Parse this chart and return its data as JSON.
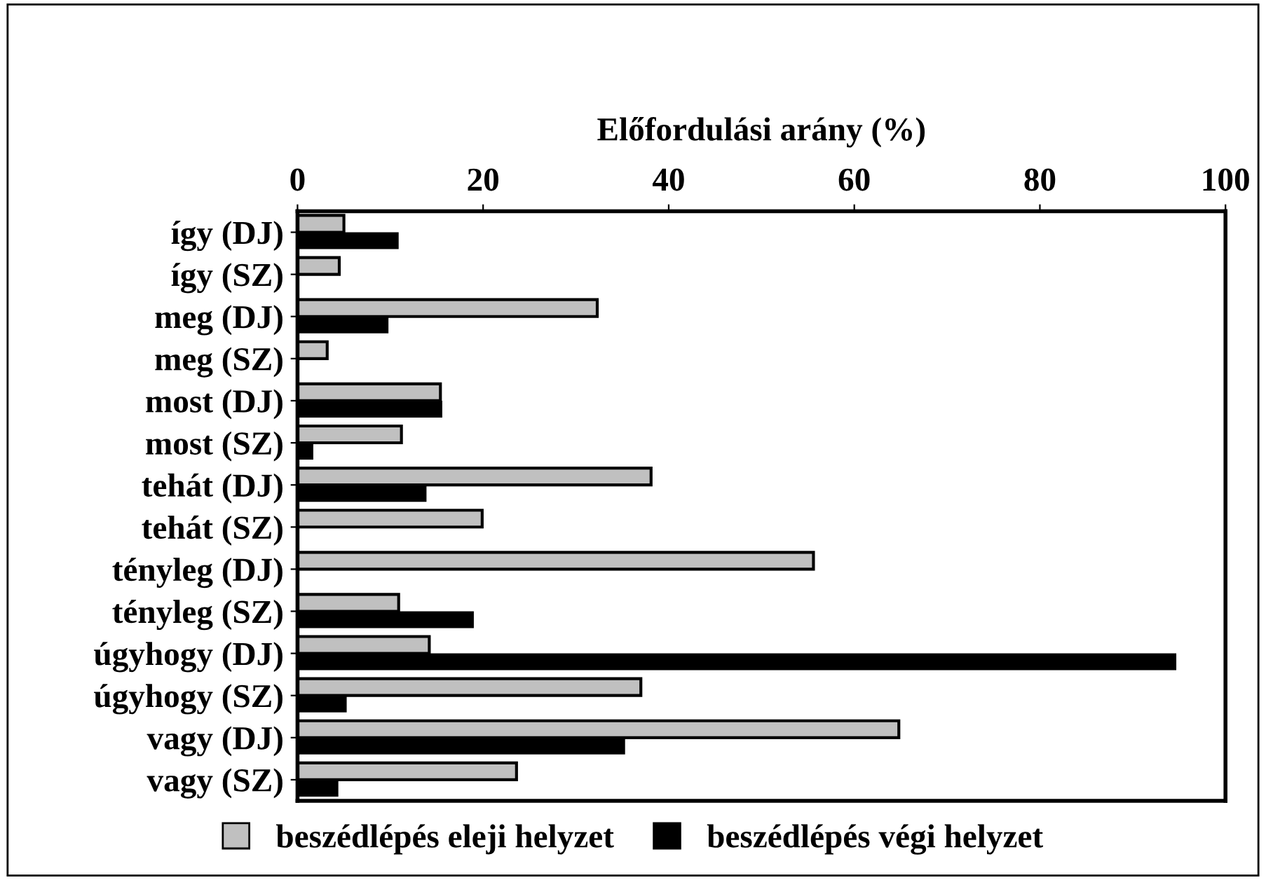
{
  "chart_data": {
    "type": "bar",
    "orientation": "horizontal",
    "xlabel": "Előfordulási arány (%)",
    "categories": [
      "így (DJ)",
      "így (SZ)",
      "meg (DJ)",
      "meg (SZ)",
      "most (DJ)",
      "most (SZ)",
      "tehát (DJ)",
      "tehát (SZ)",
      "tényleg (DJ)",
      "tényleg (SZ)",
      "úgyhogy (DJ)",
      "úgyhogy (SZ)",
      "vagy (DJ)",
      "vagy (SZ)"
    ],
    "series": [
      {
        "name": "beszédlépés eleji helyzet",
        "color": "#c0c0c0",
        "values": [
          5,
          4.5,
          32.3,
          3.2,
          15.4,
          11.2,
          38.1,
          19.9,
          55.6,
          10.9,
          14.2,
          37,
          64.8,
          23.6
        ]
      },
      {
        "name": "beszédlépés végi helyzet",
        "color": "#000000",
        "values": [
          10.9,
          0,
          9.8,
          0,
          15.6,
          1.7,
          13.9,
          0,
          0,
          19,
          94.7,
          5.3,
          35.3,
          4.4
        ]
      }
    ],
    "xlim": [
      0,
      100
    ],
    "xticks": [
      0,
      20,
      40,
      60,
      80,
      100
    ],
    "grid": false,
    "legend": "bottom"
  }
}
